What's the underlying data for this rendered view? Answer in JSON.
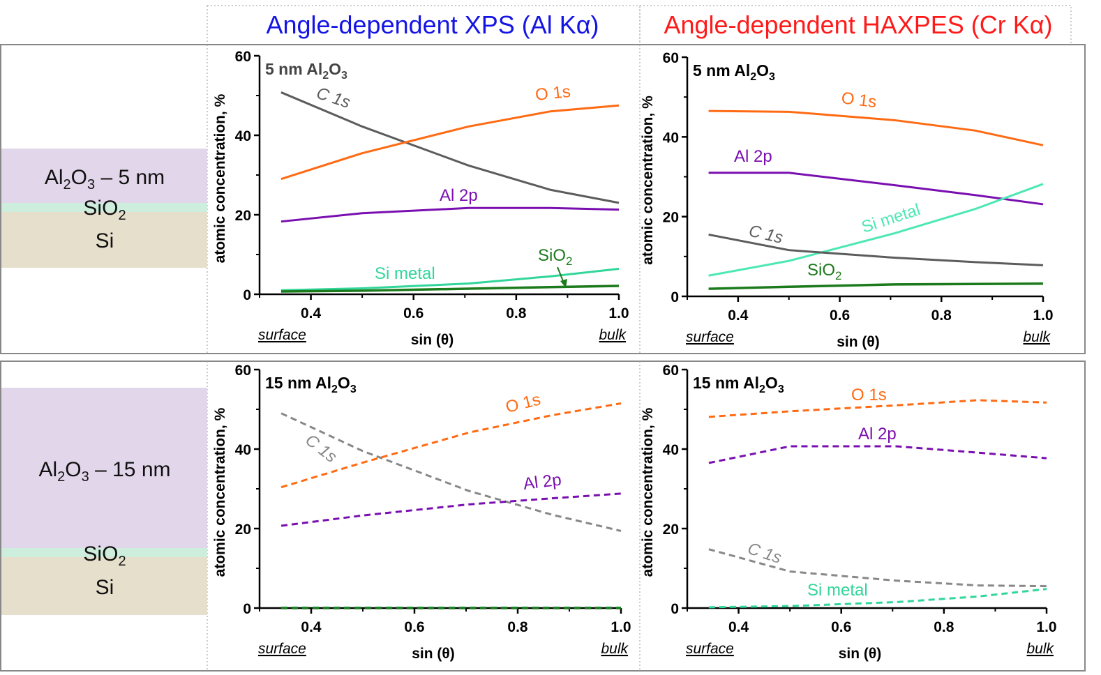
{
  "headers": {
    "xps": "Angle-dependent XPS (Al Kα)",
    "haxpes": "Angle-dependent HAXPES (Cr Kα)",
    "xps_color": "#1414e6",
    "haxpes_color": "#ff1a1a"
  },
  "stacks": [
    {
      "layers": [
        {
          "label": "Al2O3 – 5 nm",
          "color": "#e2d7ea"
        },
        {
          "label": "SiO2",
          "color": "#cdeedd"
        },
        {
          "label": "Si",
          "color": "#e5dfcc"
        }
      ]
    },
    {
      "layers": [
        {
          "label": "Al2O3 – 15 nm",
          "color": "#e2d7ea"
        },
        {
          "label": "SiO2",
          "color": "#cdeedd"
        },
        {
          "label": "Si",
          "color": "#e5dfcc"
        }
      ]
    }
  ],
  "colors": {
    "O 1s": "#ff6a13",
    "C 1s": "#888888",
    "C 1s solid": "#5c5c5c",
    "Al 2p": "#7a0fb0",
    "Si metal": "#4de8b4",
    "Si metal xps": "#30d69a",
    "SiO2": "#1c7a1c"
  },
  "chart_data": [
    {
      "type": "line",
      "panel": "XPS 5 nm",
      "title": "5 nm Al2O3",
      "xlabel": "sin (θ)",
      "ylabel": "atomic concentration, %",
      "xlim": [
        0.3,
        1.0
      ],
      "ylim": [
        0,
        60
      ],
      "xticks": [
        "0.4",
        "0.6",
        "0.8",
        "1.0"
      ],
      "yticks": [
        "0",
        "20",
        "40",
        "60"
      ],
      "x_edge_labels": [
        "surface",
        "bulk"
      ],
      "line_style": "solid",
      "x": [
        0.342,
        0.5,
        0.707,
        0.866,
        1.0
      ],
      "series": [
        {
          "name": "C 1s",
          "values": [
            50.8,
            42.2,
            32.4,
            26.3,
            23.0
          ]
        },
        {
          "name": "O 1s",
          "values": [
            29.0,
            35.5,
            42.2,
            46.0,
            47.5
          ]
        },
        {
          "name": "Al 2p",
          "values": [
            18.3,
            20.4,
            21.7,
            21.7,
            21.3
          ]
        },
        {
          "name": "Si metal",
          "values": [
            1.0,
            1.5,
            2.7,
            4.5,
            6.4
          ]
        },
        {
          "name": "SiO2",
          "values": [
            0.7,
            0.9,
            1.4,
            1.8,
            2.1
          ]
        }
      ]
    },
    {
      "type": "line",
      "panel": "HAXPES 5 nm",
      "title": "5 nm Al2O3",
      "xlabel": "sin (θ)",
      "ylabel": "atomic concentration, %",
      "xlim": [
        0.3,
        1.0
      ],
      "ylim": [
        0,
        60
      ],
      "xticks": [
        "0.4",
        "0.6",
        "0.8",
        "1.0"
      ],
      "yticks": [
        "0",
        "20",
        "40",
        "60"
      ],
      "x_edge_labels": [
        "surface",
        "bulk"
      ],
      "line_style": "solid",
      "x": [
        0.342,
        0.5,
        0.707,
        0.866,
        1.0
      ],
      "series": [
        {
          "name": "O 1s",
          "values": [
            46.5,
            46.3,
            44.2,
            41.6,
            37.9
          ]
        },
        {
          "name": "Al 2p",
          "values": [
            31.0,
            31.0,
            27.9,
            25.4,
            23.1
          ]
        },
        {
          "name": "Si metal",
          "values": [
            5.2,
            8.9,
            15.8,
            21.9,
            28.2
          ]
        },
        {
          "name": "C 1s",
          "values": [
            15.5,
            11.6,
            9.7,
            8.6,
            7.8
          ]
        },
        {
          "name": "SiO2",
          "values": [
            1.9,
            2.4,
            3.0,
            3.1,
            3.2
          ]
        }
      ]
    },
    {
      "type": "line",
      "panel": "XPS 15 nm",
      "title": "15 nm Al2O3",
      "xlabel": "sin (θ)",
      "ylabel": "atomic concentration, %",
      "xlim": [
        0.3,
        1.0
      ],
      "ylim": [
        0,
        60
      ],
      "xticks": [
        "0.4",
        "0.6",
        "0.8",
        "1.0"
      ],
      "yticks": [
        "0",
        "20",
        "40",
        "60"
      ],
      "x_edge_labels": [
        "surface",
        "bulk"
      ],
      "line_style": "dashed",
      "x": [
        0.342,
        0.5,
        0.707,
        0.866,
        1.0
      ],
      "series": [
        {
          "name": "C 1s",
          "values": [
            49.0,
            39.5,
            29.4,
            23.5,
            19.4
          ]
        },
        {
          "name": "O 1s",
          "values": [
            30.4,
            36.6,
            44.2,
            48.5,
            51.5
          ]
        },
        {
          "name": "Al 2p",
          "values": [
            20.7,
            23.3,
            26.1,
            27.6,
            28.8
          ]
        },
        {
          "name": "Si metal",
          "values": [
            0.1,
            0.1,
            0.1,
            0.1,
            0.1
          ]
        },
        {
          "name": "SiO2",
          "values": [
            0.0,
            0.0,
            0.0,
            0.0,
            0.0
          ]
        }
      ]
    },
    {
      "type": "line",
      "panel": "HAXPES 15 nm",
      "title": "15 nm Al2O3",
      "xlabel": "sin (θ)",
      "ylabel": "atomic concentration, %",
      "xlim": [
        0.3,
        1.0
      ],
      "ylim": [
        0,
        60
      ],
      "xticks": [
        "0.4",
        "0.6",
        "0.8",
        "1.0"
      ],
      "yticks": [
        "0",
        "20",
        "40",
        "60"
      ],
      "x_edge_labels": [
        "surface",
        "bulk"
      ],
      "line_style": "dashed",
      "x": [
        0.342,
        0.5,
        0.707,
        0.866,
        1.0
      ],
      "series": [
        {
          "name": "O 1s",
          "values": [
            48.1,
            49.5,
            51.0,
            52.3,
            51.7
          ]
        },
        {
          "name": "Al 2p",
          "values": [
            36.5,
            40.7,
            40.7,
            39.1,
            37.7
          ]
        },
        {
          "name": "C 1s",
          "values": [
            14.8,
            9.2,
            6.9,
            5.7,
            5.5
          ]
        },
        {
          "name": "Si metal",
          "values": [
            0.2,
            0.5,
            1.5,
            2.9,
            4.8
          ]
        }
      ]
    }
  ]
}
